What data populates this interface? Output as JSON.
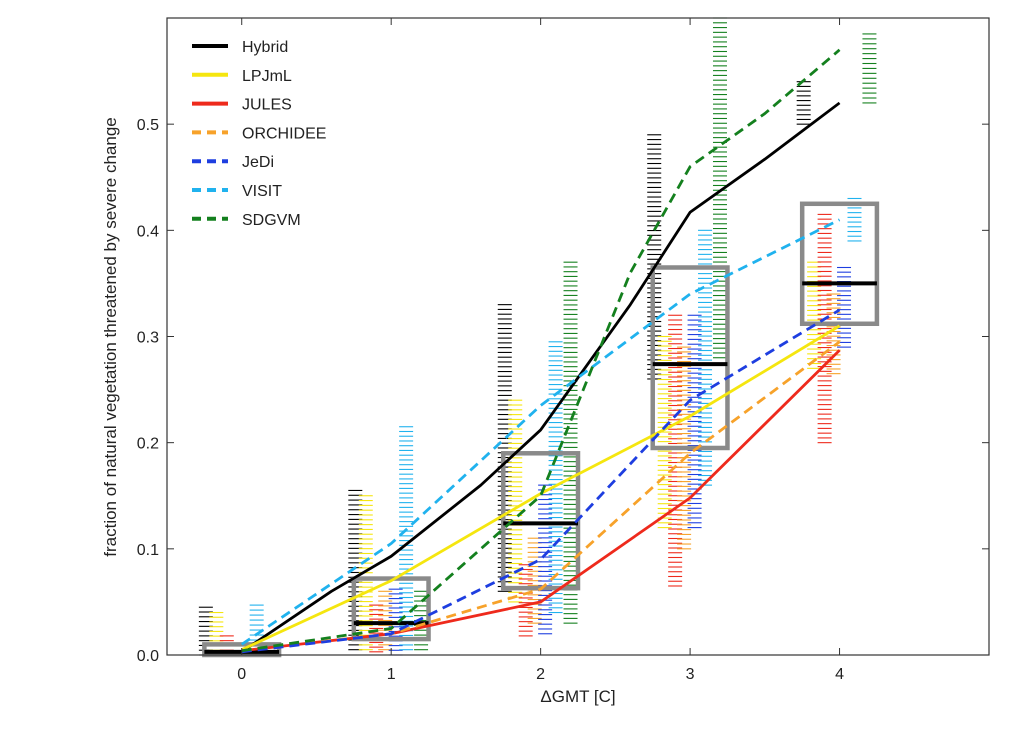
{
  "chart_data": {
    "type": "line",
    "xlabel": "ΔGMT [C]",
    "ylabel": "fraction of natural vegetation threatened by severe change",
    "xlim": [
      -0.5,
      5.0
    ],
    "ylim": [
      0,
      0.6
    ],
    "xticks": [
      0,
      1,
      2,
      3,
      4
    ],
    "yticks": [
      0.0,
      0.1,
      0.2,
      0.3,
      0.4,
      0.5
    ],
    "ytick_labels": [
      "0.0",
      "0.1",
      "0.2",
      "0.3",
      "0.4",
      "0.5"
    ],
    "legend_position": "top-left",
    "grid": false,
    "series": [
      {
        "name": "Hybrid",
        "color": "#000000",
        "dash": "solid",
        "x": [
          0,
          0.6,
          1,
          1.6,
          2,
          2.6,
          3,
          3.5,
          4
        ],
        "y": [
          0.003,
          0.06,
          0.093,
          0.16,
          0.212,
          0.33,
          0.417,
          0.467,
          0.52
        ]
      },
      {
        "name": "LPJmL",
        "color": "#f5e60f",
        "dash": "solid",
        "x": [
          0,
          1,
          2,
          3,
          4
        ],
        "y": [
          0.005,
          0.07,
          0.152,
          0.225,
          0.31
        ]
      },
      {
        "name": "JULES",
        "color": "#ee2a1c",
        "dash": "solid",
        "x": [
          0,
          1,
          2,
          3,
          4
        ],
        "y": [
          0.004,
          0.02,
          0.05,
          0.148,
          0.287
        ]
      },
      {
        "name": "ORCHIDEE",
        "color": "#f7a22a",
        "dash": "dashed",
        "x": [
          0,
          1,
          2,
          3,
          4
        ],
        "y": [
          0.004,
          0.02,
          0.062,
          0.19,
          0.295
        ]
      },
      {
        "name": "JeDi",
        "color": "#1e3ee0",
        "dash": "dashed",
        "x": [
          0,
          1,
          2,
          3,
          4
        ],
        "y": [
          0.003,
          0.02,
          0.09,
          0.24,
          0.325
        ]
      },
      {
        "name": "VISIT",
        "color": "#20b2ee",
        "dash": "dashed",
        "x": [
          0,
          1,
          2,
          3,
          4
        ],
        "y": [
          0.01,
          0.105,
          0.235,
          0.34,
          0.41
        ]
      },
      {
        "name": "SDGVM",
        "color": "#14801e",
        "dash": "dashed",
        "x": [
          0,
          1,
          2,
          2.6,
          3,
          3.5,
          4
        ],
        "y": [
          0.004,
          0.025,
          0.15,
          0.36,
          0.46,
          0.51,
          0.57
        ]
      }
    ],
    "boxes": [
      {
        "x": 0,
        "low": 0.0,
        "high": 0.01,
        "median": 0.003
      },
      {
        "x": 1,
        "low": 0.015,
        "high": 0.072,
        "median": 0.03
      },
      {
        "x": 2,
        "low": 0.063,
        "high": 0.19,
        "median": 0.124
      },
      {
        "x": 3,
        "low": 0.195,
        "high": 0.365,
        "median": 0.274
      },
      {
        "x": 4,
        "low": 0.312,
        "high": 0.425,
        "median": 0.35
      }
    ],
    "rug_offsets": {
      "Hybrid": -0.24,
      "LPJmL": -0.17,
      "JULES": -0.1,
      "ORCHIDEE": -0.04,
      "JeDi": 0.03,
      "VISIT": 0.1,
      "SDGVM": 0.2
    },
    "rug_ranges": [
      {
        "series": "Hybrid",
        "x": 0,
        "low": 0.0,
        "high": 0.045
      },
      {
        "series": "LPJmL",
        "x": 0,
        "low": 0.0,
        "high": 0.04
      },
      {
        "series": "JULES",
        "x": 0,
        "low": 0.0,
        "high": 0.018
      },
      {
        "series": "VISIT",
        "x": 0,
        "low": 0.0,
        "high": 0.047
      },
      {
        "series": "Hybrid",
        "x": 1,
        "low": 0.005,
        "high": 0.155
      },
      {
        "series": "LPJmL",
        "x": 1,
        "low": 0.005,
        "high": 0.15
      },
      {
        "series": "JULES",
        "x": 1,
        "low": 0.003,
        "high": 0.047
      },
      {
        "series": "ORCHIDEE",
        "x": 1,
        "low": 0.005,
        "high": 0.06
      },
      {
        "series": "JeDi",
        "x": 1,
        "low": 0.0,
        "high": 0.062
      },
      {
        "series": "VISIT",
        "x": 1,
        "low": 0.005,
        "high": 0.215
      },
      {
        "series": "SDGVM",
        "x": 1,
        "low": 0.005,
        "high": 0.06
      },
      {
        "series": "Hybrid",
        "x": 2,
        "low": 0.06,
        "high": 0.33
      },
      {
        "series": "LPJmL",
        "x": 2,
        "low": 0.05,
        "high": 0.24
      },
      {
        "series": "JULES",
        "x": 2,
        "low": 0.018,
        "high": 0.085
      },
      {
        "series": "ORCHIDEE",
        "x": 2,
        "low": 0.03,
        "high": 0.11
      },
      {
        "series": "JeDi",
        "x": 2,
        "low": 0.02,
        "high": 0.16
      },
      {
        "series": "VISIT",
        "x": 2,
        "low": 0.04,
        "high": 0.295
      },
      {
        "series": "SDGVM",
        "x": 2,
        "low": 0.03,
        "high": 0.37
      },
      {
        "series": "Hybrid",
        "x": 3,
        "low": 0.26,
        "high": 0.49
      },
      {
        "series": "LPJmL",
        "x": 3,
        "low": 0.12,
        "high": 0.3
      },
      {
        "series": "JULES",
        "x": 3,
        "low": 0.065,
        "high": 0.32
      },
      {
        "series": "ORCHIDEE",
        "x": 3,
        "low": 0.1,
        "high": 0.29
      },
      {
        "series": "JeDi",
        "x": 3,
        "low": 0.12,
        "high": 0.32
      },
      {
        "series": "VISIT",
        "x": 3,
        "low": 0.16,
        "high": 0.4
      },
      {
        "series": "SDGVM",
        "x": 3,
        "low": 0.28,
        "high": 0.6
      },
      {
        "series": "Hybrid",
        "x": 4,
        "low": 0.5,
        "high": 0.54
      },
      {
        "series": "LPJmL",
        "x": 4,
        "low": 0.27,
        "high": 0.37
      },
      {
        "series": "JULES",
        "x": 4,
        "low": 0.2,
        "high": 0.415
      },
      {
        "series": "ORCHIDEE",
        "x": 4,
        "low": 0.265,
        "high": 0.34
      },
      {
        "series": "JeDi",
        "x": 4,
        "low": 0.29,
        "high": 0.365
      },
      {
        "series": "VISIT",
        "x": 4,
        "low": 0.39,
        "high": 0.43
      },
      {
        "series": "SDGVM",
        "x": 4,
        "low": 0.52,
        "high": 0.585
      }
    ],
    "box_color": "#8a8a8a",
    "axis_color": "#333333"
  }
}
